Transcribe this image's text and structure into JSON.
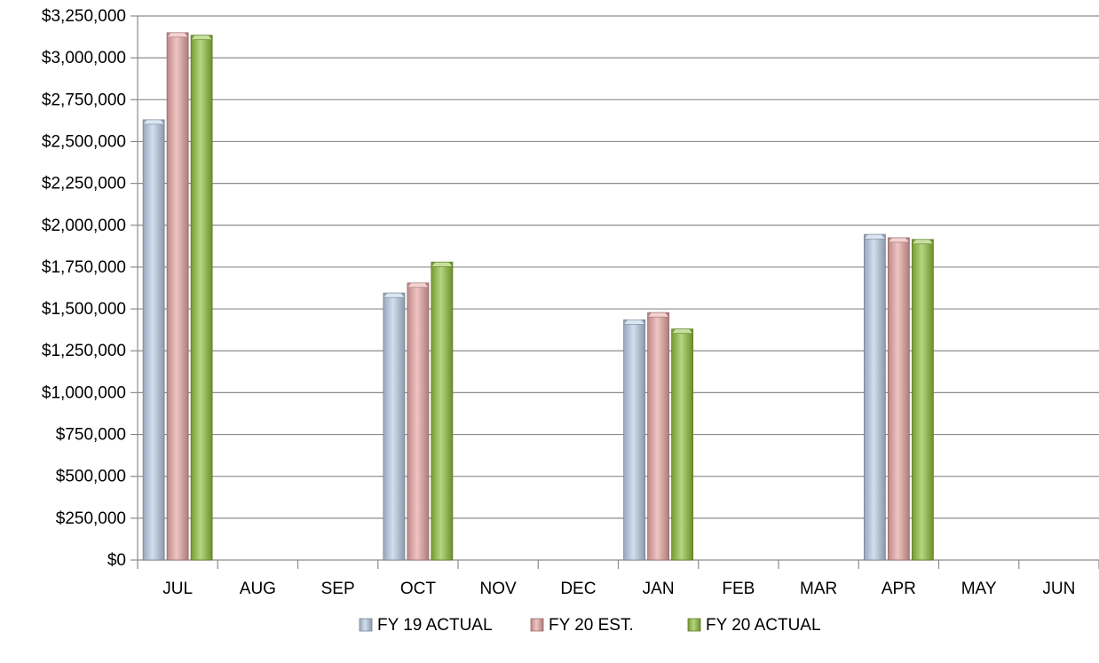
{
  "chart_data": {
    "type": "bar",
    "categories": [
      "JUL",
      "AUG",
      "SEP",
      "OCT",
      "NOV",
      "DEC",
      "JAN",
      "FEB",
      "MAR",
      "APR",
      "MAY",
      "JUN"
    ],
    "series": [
      {
        "name": "FY 19 ACTUAL",
        "color": "#b8cce4",
        "values": [
          2630000,
          null,
          null,
          1595000,
          null,
          null,
          1435000,
          null,
          null,
          1945000,
          null,
          null
        ]
      },
      {
        "name": "FY 20 EST.",
        "color": "#e6a5a3",
        "values": [
          3150000,
          null,
          null,
          1655000,
          null,
          null,
          1478000,
          null,
          null,
          1925000,
          null,
          null
        ]
      },
      {
        "name": "FY 20 ACTUAL",
        "color": "#8fbe3c",
        "values": [
          3135000,
          null,
          null,
          1780000,
          null,
          null,
          1380000,
          null,
          null,
          1915000,
          null,
          null
        ]
      }
    ],
    "y_ticks": [
      "$0",
      "$250,000",
      "$500,000",
      "$750,000",
      "$1,000,000",
      "$1,250,000",
      "$1,500,000",
      "$1,750,000",
      "$2,000,000",
      "$2,250,000",
      "$2,500,000",
      "$2,750,000",
      "$3,000,000",
      "$3,250,000"
    ],
    "ylim": [
      0,
      3250000
    ],
    "y_step": 250000,
    "grid": true,
    "legend_position": "bottom"
  }
}
